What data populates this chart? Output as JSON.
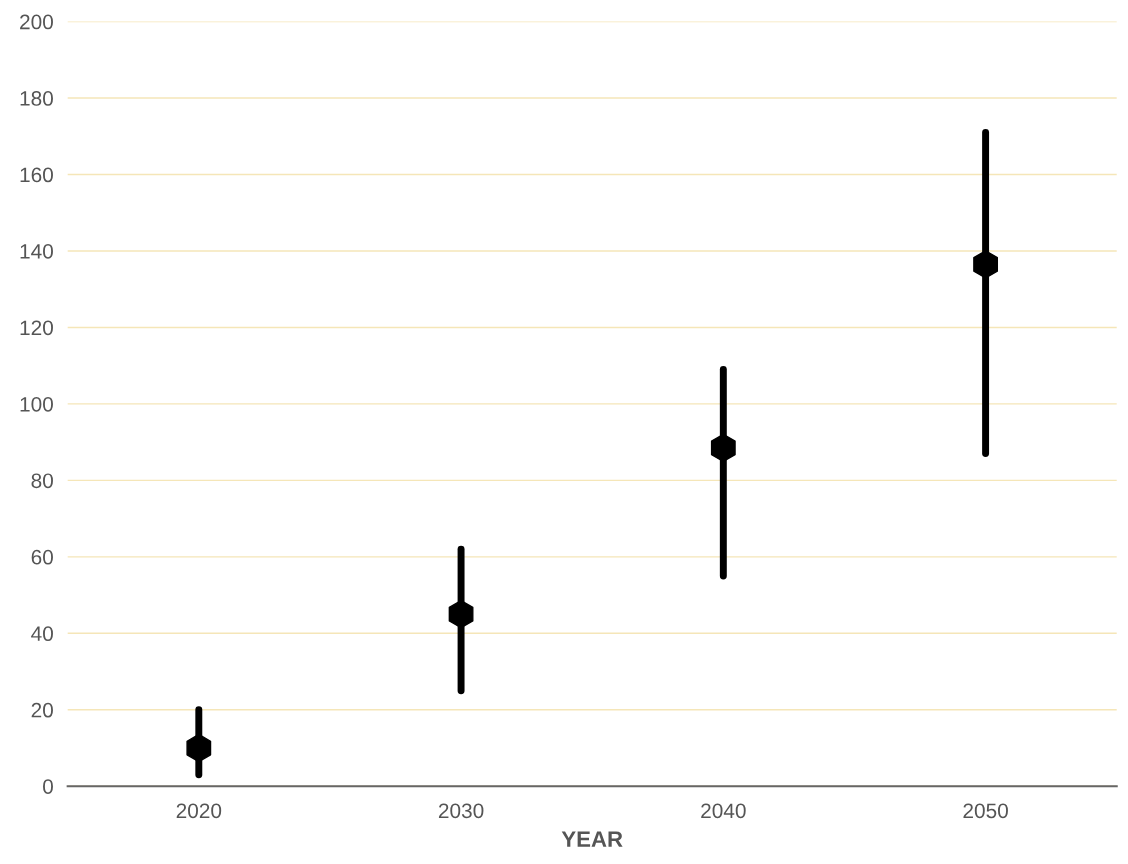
{
  "chart_data": {
    "type": "scatter",
    "xlabel": "YEAR",
    "categories": [
      "2020",
      "2030",
      "2040",
      "2050"
    ],
    "series": [
      {
        "color": "#000000",
        "values": [
          10,
          45,
          88.5,
          136.5
        ],
        "errors": [
          [
            3,
            20
          ],
          [
            25,
            62
          ],
          [
            55,
            109
          ],
          [
            87,
            171
          ]
        ]
      }
    ],
    "ylim": [
      0,
      200
    ],
    "yticks": [
      0,
      20,
      40,
      60,
      80,
      100,
      120,
      140,
      160,
      180,
      200
    ],
    "grid": "y",
    "legend": false
  }
}
